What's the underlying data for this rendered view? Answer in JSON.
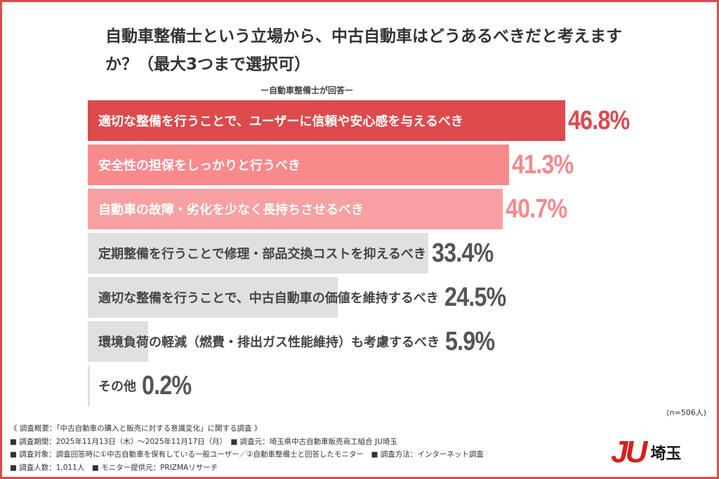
{
  "title": "自動車整備士という立場から、中古自動車はどうあるべきだと考えますか？（最大3つまで選択可）",
  "subtitle": "ー自動車整備士が回答ー",
  "sample": "(n=506人)",
  "chart_data": {
    "type": "bar",
    "orientation": "horizontal",
    "categories": [
      "適切な整備を行うことで、ユーザーに信頼や安心感を与えるべき",
      "安全性の担保をしっかりと行うべき",
      "自動車の故障・劣化を少なく長持ちさせるべき",
      "定期整備を行うことで修理・部品交換コストを抑えるべき",
      "適切な整備を行うことで、中古自動車の価値を維持するべき",
      "環境負荷の軽減（燃費・排出ガス性能維持）も考慮するべき",
      "その他"
    ],
    "values": [
      46.8,
      41.3,
      40.7,
      33.4,
      24.5,
      5.9,
      0.2
    ],
    "labels": [
      "46.8%",
      "41.3%",
      "40.7%",
      "33.4%",
      "24.5%",
      "5.9%",
      "0.2%"
    ],
    "bar_colors": [
      "#dc4a4c",
      "#f98a8c",
      "#f9a0a2",
      "#e0e0e0",
      "#e0e0e0",
      "#e0e0e0",
      "#e0e0e0"
    ],
    "text_colors": [
      "#ffffff",
      "#ffffff",
      "#ffffff",
      "#444444",
      "#444444",
      "#444444",
      "#444444"
    ],
    "pct_colors": [
      "#dc4a4c",
      "#f5898b",
      "#f5898b",
      "#555555",
      "#555555",
      "#555555",
      "#555555"
    ]
  },
  "notes": [
    "《 調査概要：「中古自動車の購入と販売に対する意識変化」に関する調査 》",
    "■ 調査期間：2025年11月13日（木）～2025年11月17日（月）　■ 調査元：埼玉県中古自動車販売商工組合 JU埼玉",
    "■ 調査対象：調査回答時に①中古自動車を保有している一般ユーザー／②自動車整備士と回答したモニター　■ 調査方法：インターネット調査",
    "■ 調査人数：1,011人　■ モニター提供元：PRIZMAリサーチ"
  ],
  "logo": {
    "mark": "JU",
    "text": "埼玉"
  }
}
